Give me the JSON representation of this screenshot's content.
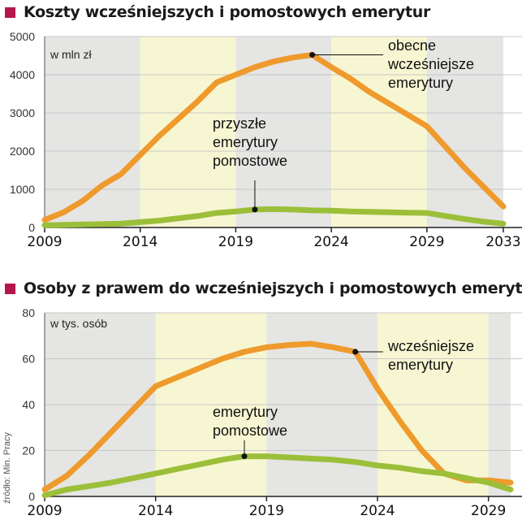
{
  "colors": {
    "orange": "#ef9a2c",
    "green": "#9cbf3a",
    "title_marker": "#b5174a",
    "band_gray": "#e5e5e3",
    "band_yellow": "#f7f6d2",
    "grid": "#c8c8c8"
  },
  "source": "źródło: Min. Pracy",
  "chart_data": [
    {
      "type": "line",
      "title": "Koszty wcześniejszych i pomostowych emerytur",
      "unit_label": "w mln zł",
      "xlim": [
        2009,
        2033
      ],
      "ylim": [
        0,
        5000
      ],
      "xticks": [
        "2009",
        "2014",
        "2019",
        "2024",
        "2029",
        "2033"
      ],
      "yticks": [
        "0",
        "1000",
        "2000",
        "3000",
        "4000",
        "5000"
      ],
      "grid": true,
      "series": [
        {
          "name": "obecne wcześniejsze emerytury",
          "name_lines": [
            "obecne",
            "wcześniejsze",
            "emerytury"
          ],
          "color": "orange",
          "x": [
            2009,
            2010,
            2011,
            2012,
            2013,
            2014,
            2015,
            2016,
            2017,
            2018,
            2019,
            2020,
            2021,
            2022,
            2023,
            2024,
            2025,
            2026,
            2027,
            2028,
            2029,
            2030,
            2031,
            2032,
            2033
          ],
          "values": [
            200,
            400,
            700,
            1100,
            1400,
            1900,
            2400,
            2850,
            3300,
            3800,
            4000,
            4200,
            4350,
            4450,
            4520,
            4200,
            3900,
            3550,
            3250,
            2950,
            2650,
            2100,
            1550,
            1050,
            550
          ]
        },
        {
          "name": "przyszłe emerytury pomostowe",
          "name_lines": [
            "przyszłe",
            "emerytury",
            "pomostowe"
          ],
          "color": "green",
          "x": [
            2009,
            2011,
            2013,
            2015,
            2017,
            2018,
            2019,
            2020,
            2021,
            2022,
            2023,
            2024,
            2025,
            2026,
            2027,
            2028,
            2029,
            2030,
            2031,
            2032,
            2033
          ],
          "values": [
            60,
            80,
            100,
            180,
            300,
            380,
            420,
            470,
            480,
            470,
            450,
            440,
            420,
            410,
            400,
            390,
            380,
            300,
            220,
            150,
            100
          ]
        }
      ],
      "callouts": [
        {
          "series": 0,
          "x": 2023
        },
        {
          "series": 1,
          "x": 2020
        }
      ],
      "bands": [
        {
          "from": 2009,
          "to": 2014,
          "fill": "band_gray"
        },
        {
          "from": 2014,
          "to": 2019,
          "fill": "band_yellow"
        },
        {
          "from": 2019,
          "to": 2024,
          "fill": "band_gray"
        },
        {
          "from": 2024,
          "to": 2029,
          "fill": "band_yellow"
        },
        {
          "from": 2029,
          "to": 2033,
          "fill": "band_gray"
        }
      ]
    },
    {
      "type": "line",
      "title": "Osoby z prawem do wcześniejszych i pomostowych emerytur",
      "unit_label": "w tys. osób",
      "xlim": [
        2009,
        2030
      ],
      "ylim": [
        0,
        80
      ],
      "xticks": [
        "2009",
        "2014",
        "2019",
        "2024",
        "2029"
      ],
      "yticks": [
        "0",
        "20",
        "40",
        "60",
        "80"
      ],
      "grid": true,
      "series": [
        {
          "name": "wcześniejsze emerytury",
          "name_lines": [
            "wcześniejsze",
            "emerytury"
          ],
          "color": "orange",
          "x": [
            2009,
            2010,
            2011,
            2012,
            2013,
            2014,
            2015,
            2016,
            2017,
            2018,
            2019,
            2020,
            2021,
            2022,
            2023,
            2024,
            2025,
            2026,
            2027,
            2028,
            2029,
            2030
          ],
          "values": [
            3,
            9,
            18,
            28,
            38,
            48,
            52,
            56,
            60,
            63,
            65,
            66,
            66.5,
            65,
            63,
            47,
            33,
            20,
            10,
            7,
            7,
            6
          ]
        },
        {
          "name": "emerytury pomostowe",
          "name_lines": [
            "emerytury",
            "pomostowe"
          ],
          "color": "green",
          "x": [
            2009,
            2010,
            2011,
            2012,
            2013,
            2014,
            2015,
            2016,
            2017,
            2018,
            2019,
            2020,
            2021,
            2022,
            2023,
            2024,
            2025,
            2026,
            2027,
            2028,
            2029,
            2030
          ],
          "values": [
            0.5,
            3,
            4.5,
            6,
            8,
            10,
            12,
            14,
            16,
            17.5,
            17.5,
            17,
            16.5,
            16,
            15,
            13.5,
            12.5,
            11,
            10,
            8,
            6,
            3
          ]
        }
      ],
      "callouts": [
        {
          "series": 0,
          "x": 2023
        },
        {
          "series": 1,
          "x": 2018
        }
      ],
      "bands": [
        {
          "from": 2009,
          "to": 2014,
          "fill": "band_gray"
        },
        {
          "from": 2014,
          "to": 2019,
          "fill": "band_yellow"
        },
        {
          "from": 2019,
          "to": 2024,
          "fill": "band_gray"
        },
        {
          "from": 2024,
          "to": 2029,
          "fill": "band_yellow"
        },
        {
          "from": 2029,
          "to": 2030,
          "fill": "band_gray"
        }
      ]
    }
  ]
}
